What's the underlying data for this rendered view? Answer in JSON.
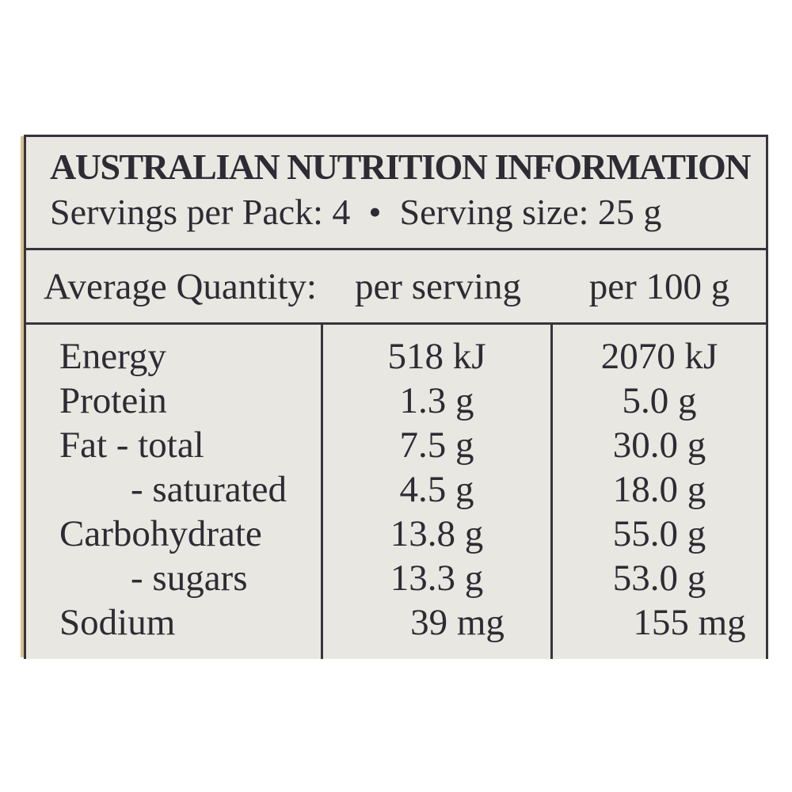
{
  "label": {
    "title": "AUSTRALIAN NUTRITION INFORMATION",
    "servings_line": "Servings per Pack: 4  •  Serving size: 25 g",
    "servings_per_pack": "4",
    "serving_size": "25 g",
    "column_headers": {
      "quantity": "Average Quantity:",
      "per_serving": "per serving",
      "per_100g": "per 100 g"
    },
    "rows": [
      {
        "label": "Energy",
        "per_serving": "518 kJ",
        "per_100g": "2070 kJ"
      },
      {
        "label": "Protein",
        "per_serving": "1.3 g",
        "per_100g": "5.0 g"
      },
      {
        "label": "Fat - total",
        "per_serving": "7.5 g",
        "per_100g": "30.0 g"
      },
      {
        "label": "- saturated",
        "per_serving": "4.5 g",
        "per_100g": "18.0 g"
      },
      {
        "label": "Carbohydrate",
        "per_serving": "13.8 g",
        "per_100g": "55.0 g"
      },
      {
        "label": "- sugars",
        "per_serving": "13.3 g",
        "per_100g": "53.0 g"
      },
      {
        "label": "Sodium",
        "per_serving": "39 mg",
        "per_100g": "155 mg"
      }
    ],
    "colors": {
      "label_background": "#e9e7e1",
      "border": "#36343c",
      "text": "#2d2b33",
      "page_background": "#ffffff",
      "photo_edge": "#d9c28f"
    }
  }
}
